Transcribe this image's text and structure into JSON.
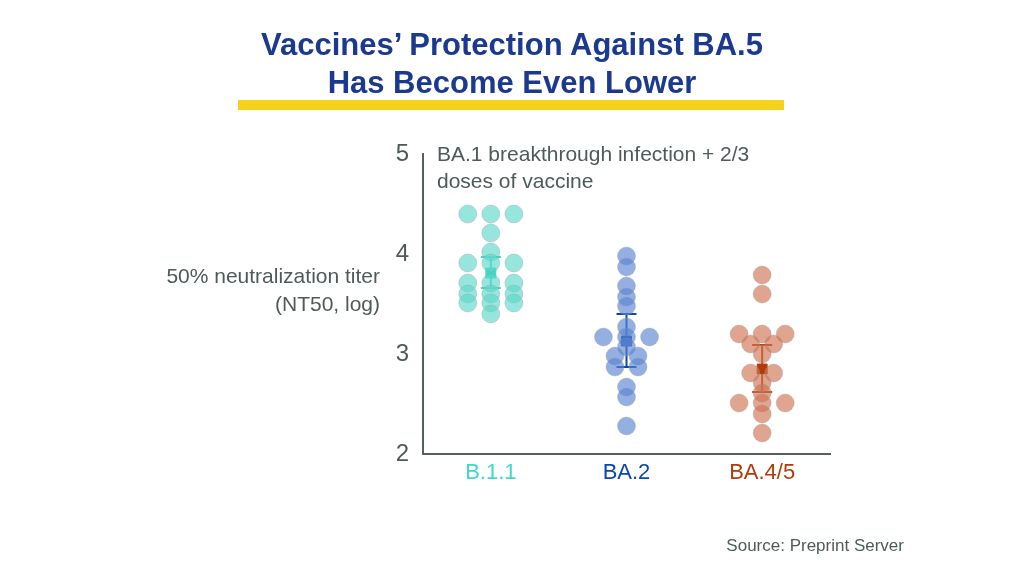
{
  "chart_data": {
    "type": "scatter",
    "title": "Vaccines’ Protection Against BA.5 Has Become Even Lower",
    "subtitle": "BA.1 breakthrough infection + 2/3 doses of vaccine",
    "ylabel": "50% neutralization titer (NT50, log)",
    "categories": [
      "B.1.1",
      "BA.2",
      "BA.4/5"
    ],
    "ylim": [
      2,
      5
    ],
    "yticks": [
      2,
      3,
      4,
      5
    ],
    "grid": false,
    "legend": false,
    "log": false,
    "marker": "circle",
    "series": [
      {
        "color": "#5ed9cb",
        "x": [
          "B.1.1",
          "B.1.1",
          "B.1.1",
          "B.1.1",
          "B.1.1",
          "B.1.1",
          "B.1.1",
          "B.1.1",
          "B.1.1",
          "B.1.1",
          "B.1.1",
          "B.1.1",
          "B.1.1",
          "B.1.1",
          "B.1.1",
          "B.1.1",
          "B.1.1",
          "B.1.1"
        ],
        "values": [
          4.4,
          4.4,
          4.4,
          4.21,
          4.02,
          3.91,
          3.91,
          3.91,
          3.71,
          3.71,
          3.71,
          3.6,
          3.6,
          3.6,
          3.51,
          3.51,
          3.51,
          3.4
        ]
      },
      {
        "color": "#5b84d2",
        "x": [
          "BA.2",
          "BA.2",
          "BA.2",
          "BA.2",
          "BA.2",
          "BA.2",
          "BA.2",
          "BA.2",
          "BA.2",
          "BA.2",
          "BA.2",
          "BA.2",
          "BA.2",
          "BA.2",
          "BA.2",
          "BA.2",
          "BA.2"
        ],
        "values": [
          3.98,
          3.87,
          3.68,
          3.57,
          3.48,
          3.27,
          3.17,
          3.17,
          3.17,
          3.07,
          2.98,
          2.98,
          2.87,
          2.87,
          2.67,
          2.57,
          2.28
        ]
      },
      {
        "color": "#d07353",
        "x": [
          "BA.4/5",
          "BA.4/5",
          "BA.4/5",
          "BA.4/5",
          "BA.4/5",
          "BA.4/5",
          "BA.4/5",
          "BA.4/5",
          "BA.4/5",
          "BA.4/5",
          "BA.4/5",
          "BA.4/5",
          "BA.4/5",
          "BA.4/5",
          "BA.4/5",
          "BA.4/5",
          "BA.4/5"
        ],
        "values": [
          3.79,
          3.6,
          3.2,
          3.2,
          3.2,
          3.1,
          3.1,
          3.0,
          2.81,
          2.81,
          2.71,
          2.61,
          2.51,
          2.51,
          2.51,
          2.4,
          2.21
        ]
      },
      {
        "marker": "square",
        "colors": [
          "#3ed8c6",
          "#0b46b1",
          "#b23a0b"
        ],
        "x": [
          "B.1.1",
          "BA.2",
          "BA.4/5"
        ],
        "values": [
          3.81,
          3.13,
          2.85
        ],
        "errors": [
          [
            3.66,
            3.97
          ],
          [
            2.87,
            3.4
          ],
          [
            2.62,
            3.09
          ]
        ]
      }
    ],
    "annotations": [
      "Source: Preprint Server"
    ]
  }
}
